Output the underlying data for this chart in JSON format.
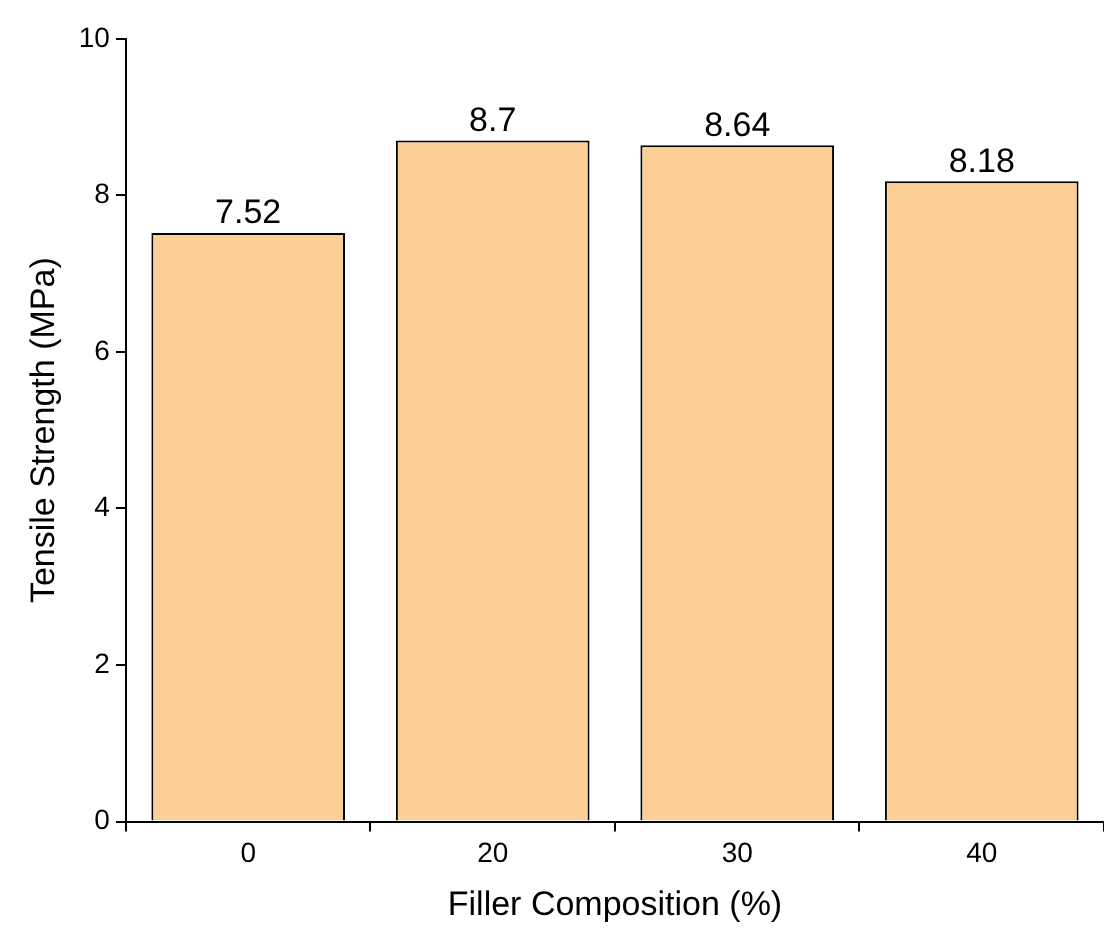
{
  "chart_data": {
    "type": "bar",
    "xlabel": "Filler Composition (%)",
    "ylabel": "Tensile Strength (MPa)",
    "categories": [
      "0",
      "20",
      "30",
      "40"
    ],
    "values": [
      7.52,
      8.7,
      8.64,
      8.18
    ],
    "color": "#fccf97",
    "ylim": [
      0,
      10
    ],
    "yticks": [
      0,
      2,
      4,
      6,
      8,
      10
    ],
    "grid": false,
    "legend": false,
    "data_labels": true
  }
}
